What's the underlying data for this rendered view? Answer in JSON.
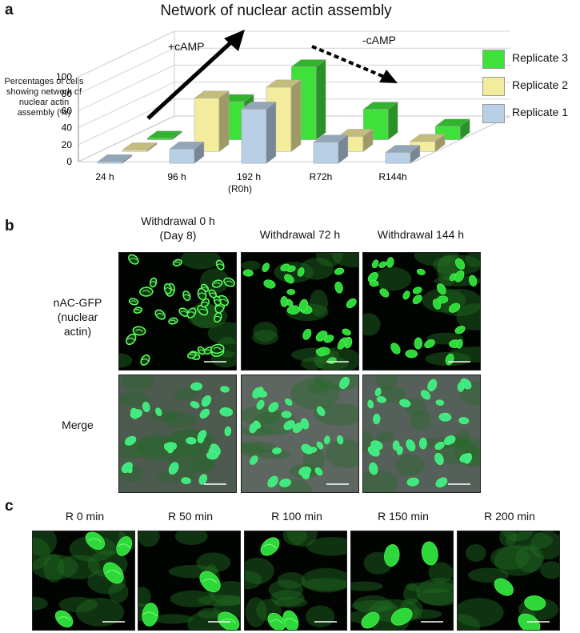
{
  "panel_a": {
    "label": "a",
    "chart_data": {
      "type": "bar",
      "title": "Network of nuclear actin assembly",
      "ylabel": "Percentages of cells showing network of nuclear actin assembly (%)",
      "ylim": [
        0,
        100
      ],
      "yticks": [
        "0",
        "20",
        "40",
        "60",
        "80",
        "100"
      ],
      "categories": [
        "24 h",
        "96 h",
        "192 h",
        "R72h",
        "R144h"
      ],
      "category_sublabel": "(R0h)",
      "series": [
        {
          "name": "Replicate 1",
          "color": "#b8cfe6",
          "values": [
            0,
            17,
            64,
            25,
            13
          ]
        },
        {
          "name": "Replicate 2",
          "color": "#f3ec9c",
          "values": [
            0,
            63,
            76,
            18,
            12
          ]
        },
        {
          "name": "Replicate 3",
          "color": "#3fe03a",
          "values": [
            0,
            45,
            86,
            36,
            16
          ]
        }
      ],
      "legend": [
        "Replicate 3",
        "Replicate 2",
        "Replicate 1"
      ],
      "legend_position": "right",
      "annotations": [
        "+cAMP",
        "-cAMP"
      ]
    }
  },
  "panel_b": {
    "label": "b",
    "columns": [
      "Withdrawal 0 h\n(Day 8)",
      "Withdrawal 72 h",
      "Withdrawal 144 h"
    ],
    "rows": [
      "nAC-GFP\n(nuclear\nactin)",
      "Merge"
    ]
  },
  "panel_c": {
    "label": "c",
    "columns": [
      "R 0 min",
      "R 50 min",
      "R 100 min",
      "R 150 min",
      "R 200 min"
    ]
  }
}
